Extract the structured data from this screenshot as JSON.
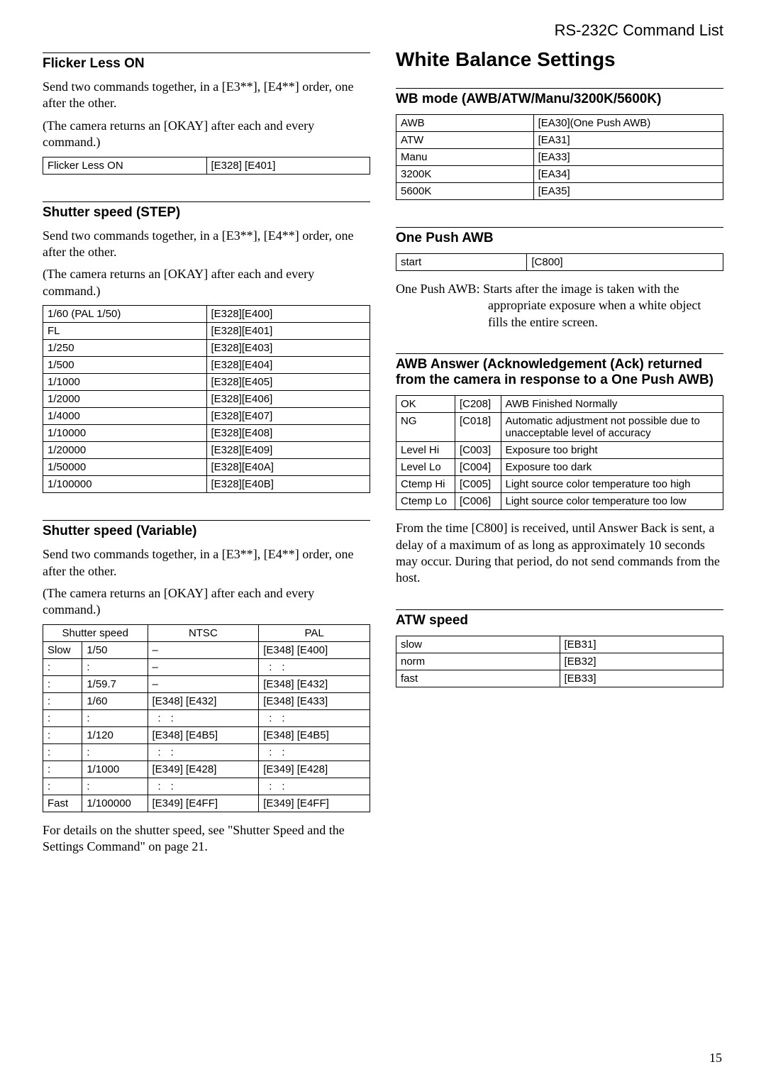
{
  "header": "RS-232C Command List",
  "page_number": "15",
  "left": {
    "s1": {
      "title": "Flicker Less ON",
      "p1": "Send two commands together, in a [E3**], [E4**] order, one after the other.",
      "p2": "(The camera returns an [OKAY] after each and every command.)",
      "row_label": "Flicker Less ON",
      "row_code": "[E328] [E401]"
    },
    "s2": {
      "title": "Shutter speed (STEP)",
      "p1": "Send two commands together, in a [E3**], [E4**] order, one after the other.",
      "p2": "(The camera returns an [OKAY] after each and every command.)",
      "rows": [
        {
          "l": "1/60 (PAL 1/50)",
          "c": "[E328][E400]"
        },
        {
          "l": "FL",
          "c": "[E328][E401]"
        },
        {
          "l": "1/250",
          "c": "[E328][E403]"
        },
        {
          "l": "1/500",
          "c": "[E328][E404]"
        },
        {
          "l": "1/1000",
          "c": "[E328][E405]"
        },
        {
          "l": "1/2000",
          "c": "[E328][E406]"
        },
        {
          "l": "1/4000",
          "c": "[E328][E407]"
        },
        {
          "l": "1/10000",
          "c": "[E328][E408]"
        },
        {
          "l": "1/20000",
          "c": "[E328][E409]"
        },
        {
          "l": "1/50000",
          "c": "[E328][E40A]"
        },
        {
          "l": "1/100000",
          "c": "[E328][E40B]"
        }
      ]
    },
    "s3": {
      "title": "Shutter speed (Variable)",
      "p1": "Send two commands together, in a [E3**], [E4**] order, one after the other.",
      "p2": "(The camera returns an [OKAY] after each and every command.)",
      "h1": "Shutter speed",
      "h2": "NTSC",
      "h3": "PAL",
      "rows": [
        {
          "a": "Slow",
          "b": "1/50",
          "c": "–",
          "d": "[E348] [E400]"
        },
        {
          "a": ":",
          "b": ":",
          "c": "–",
          "d": "::",
          "ddots": true
        },
        {
          "a": ":",
          "b": "1/59.7",
          "c": "–",
          "d": "[E348] [E432]"
        },
        {
          "a": ":",
          "b": "1/60",
          "c": "[E348] [E432]",
          "d": "[E348] [E433]"
        },
        {
          "a": ":",
          "b": ":",
          "c": "::",
          "d": "::",
          "cdots": true,
          "ddots": true
        },
        {
          "a": ":",
          "b": "1/120",
          "c": "[E348] [E4B5]",
          "d": "[E348] [E4B5]"
        },
        {
          "a": ":",
          "b": ":",
          "c": "::",
          "d": "::",
          "cdots": true,
          "ddots": true
        },
        {
          "a": ":",
          "b": "1/1000",
          "c": "[E349] [E428]",
          "d": "[E349] [E428]"
        },
        {
          "a": ":",
          "b": ":",
          "c": "::",
          "d": "::",
          "cdots": true,
          "ddots": true
        },
        {
          "a": "Fast",
          "b": "1/100000",
          "c": "[E349] [E4FF]",
          "d": "[E349] [E4FF]"
        }
      ],
      "note": "For details on the shutter speed, see \"Shutter Speed and the Settings Command\" on page 21."
    }
  },
  "right": {
    "main_title": "White Balance Settings",
    "s1": {
      "title": "WB mode (AWB/ATW/Manu/3200K/5600K)",
      "rows": [
        {
          "l": "AWB",
          "c": "[EA30](One Push AWB)"
        },
        {
          "l": "ATW",
          "c": "[EA31]"
        },
        {
          "l": "Manu",
          "c": "[EA33]"
        },
        {
          "l": "3200K",
          "c": "[EA34]"
        },
        {
          "l": "5600K",
          "c": "[EA35]"
        }
      ]
    },
    "s2": {
      "title": "One Push AWB",
      "row_label": "start",
      "row_code": "[C800]",
      "note": "One Push AWB: Starts after the image is taken with the appropriate exposure when a white object fills the entire screen."
    },
    "s3": {
      "title": "AWB Answer (Acknowledgement (Ack) returned from the camera in response to a One Push AWB)",
      "rows": [
        {
          "a": "OK",
          "b": "[C208]",
          "c": "AWB Finished Normally"
        },
        {
          "a": "NG",
          "b": "[C018]",
          "c": "Automatic adjustment not possible due to unacceptable level of accuracy"
        },
        {
          "a": "Level Hi",
          "b": "[C003]",
          "c": "Exposure too bright"
        },
        {
          "a": "Level Lo",
          "b": "[C004]",
          "c": "Exposure too dark"
        },
        {
          "a": "Ctemp Hi",
          "b": "[C005]",
          "c": "Light source color temperature too high"
        },
        {
          "a": "Ctemp Lo",
          "b": "[C006]",
          "c": "Light source color temperature too low"
        }
      ],
      "note": "From the time [C800] is received, until Answer Back is sent, a delay of a maximum of as long as approximately 10 seconds may occur. During that period, do not send commands from the host."
    },
    "s4": {
      "title": "ATW speed",
      "rows": [
        {
          "l": "slow",
          "c": "[EB31]"
        },
        {
          "l": "norm",
          "c": "[EB32]"
        },
        {
          "l": "fast",
          "c": "[EB33]"
        }
      ]
    }
  }
}
